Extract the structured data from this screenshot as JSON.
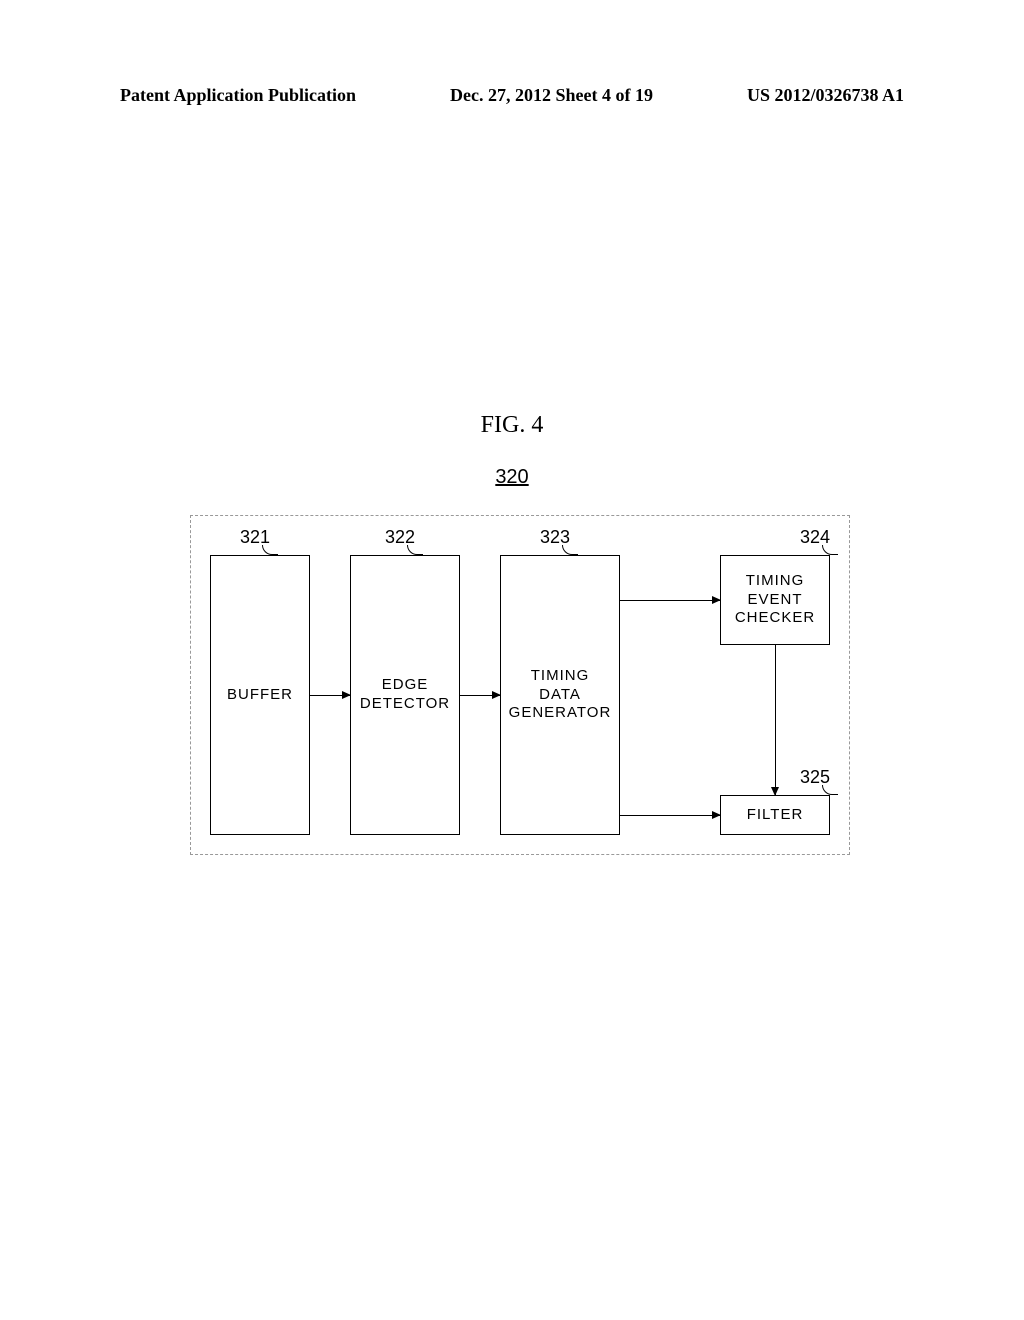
{
  "header": {
    "left": "Patent Application Publication",
    "center": "Dec. 27, 2012  Sheet 4 of 19",
    "right": "US 2012/0326738 A1"
  },
  "figure": {
    "title": "FIG. 4",
    "group_ref": "320",
    "blocks": {
      "b321": {
        "ref": "321",
        "label_l1": "BUFFER"
      },
      "b322": {
        "ref": "322",
        "label_l1": "EDGE",
        "label_l2": "DETECTOR"
      },
      "b323": {
        "ref": "323",
        "label_l1": "TIMING",
        "label_l2": "DATA",
        "label_l3": "GENERATOR"
      },
      "b324": {
        "ref": "324",
        "label_l1": "TIMING",
        "label_l2": "EVENT",
        "label_l3": "CHECKER"
      },
      "b325": {
        "ref": "325",
        "label_l1": "FILTER"
      }
    },
    "edges": [
      {
        "from": "321",
        "to": "322"
      },
      {
        "from": "322",
        "to": "323"
      },
      {
        "from": "323",
        "to": "324"
      },
      {
        "from": "323",
        "to": "325"
      },
      {
        "from": "324",
        "to": "325"
      }
    ],
    "style": {
      "outer_border": "dashed",
      "block_border_color": "#000000",
      "block_border_width": 1.5,
      "arrow_color": "#000000",
      "background": "#ffffff",
      "font_block": "Arial Narrow",
      "font_header": "Times New Roman",
      "fontsize_block": 15,
      "fontsize_ref": 18,
      "fontsize_title": 24
    }
  }
}
